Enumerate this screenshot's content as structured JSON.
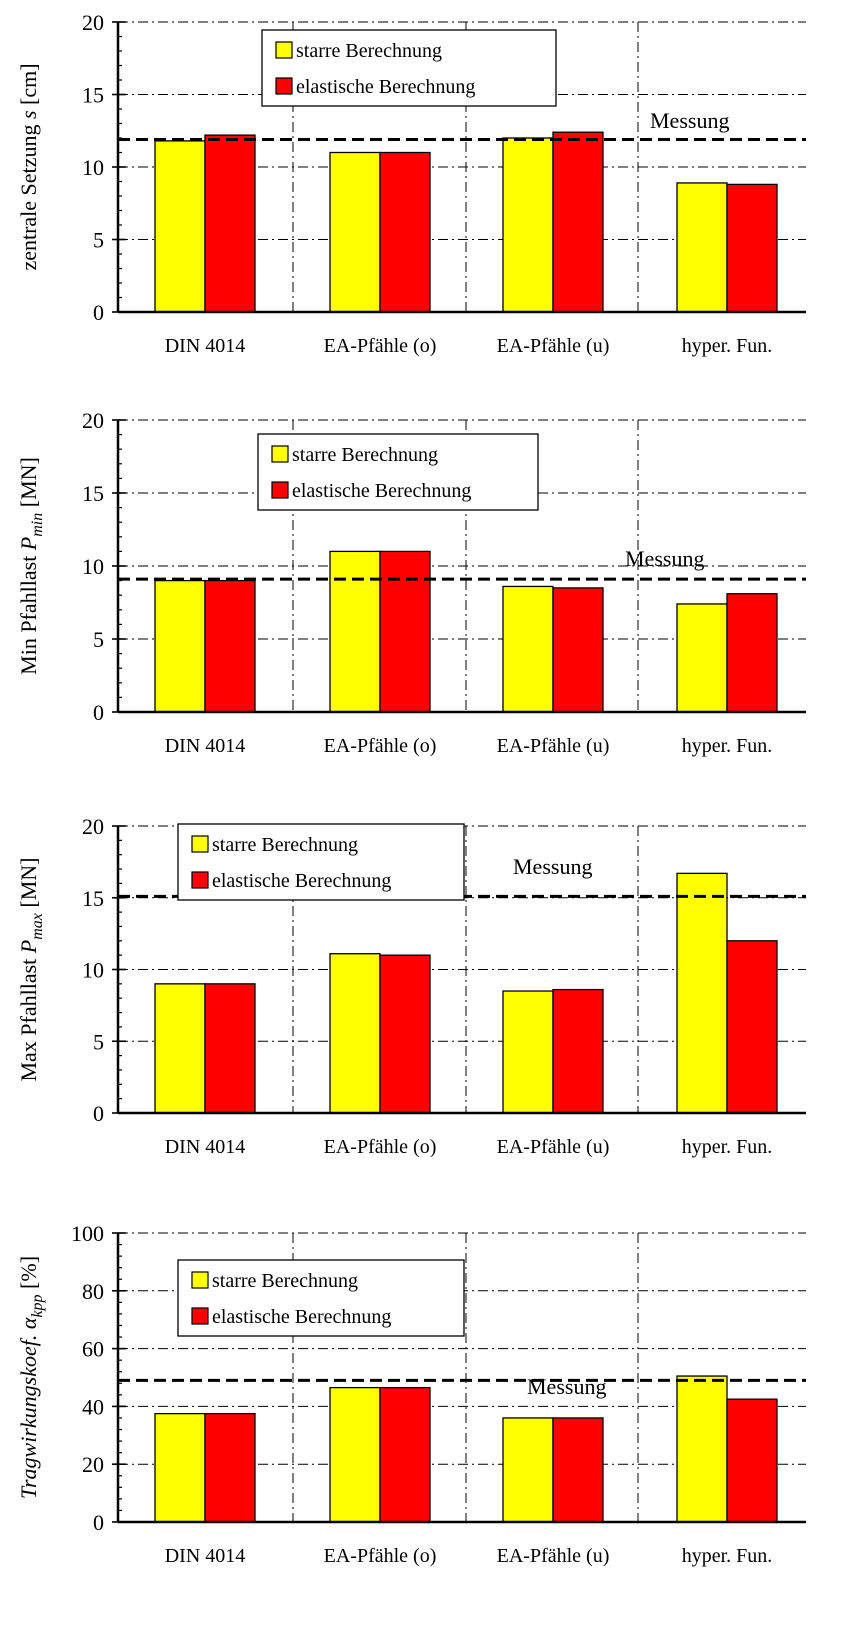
{
  "chart_data": [
    {
      "type": "bar",
      "ylabel": "zentrale Setzung s [cm]",
      "ylabel_parts": [
        {
          "text": "zentrale Setzung ",
          "italic": false
        },
        {
          "text": "s",
          "italic": true
        },
        {
          "text": " [cm]",
          "italic": false
        }
      ],
      "ylim": [
        0,
        20
      ],
      "yticks": [
        0,
        5,
        10,
        15,
        20
      ],
      "categories": [
        "DIN 4014",
        "EA-Pfähle (o)",
        "EA-Pfähle (u)",
        "hyper. Fun."
      ],
      "series": [
        {
          "name": "starre Berechnung",
          "color": "#ffff00",
          "values": [
            11.8,
            11.0,
            12.0,
            8.9
          ]
        },
        {
          "name": "elastische Berechnung",
          "color": "#ff0000",
          "values": [
            12.2,
            11.0,
            12.4,
            8.8
          ]
        }
      ],
      "reference": {
        "label": "Messung",
        "value": 11.9
      },
      "legend": "top-center",
      "grid": true
    },
    {
      "type": "bar",
      "ylabel": "Min Pfahllast P min [MN]",
      "ylabel_parts": [
        {
          "text": "Min Pfahllast ",
          "italic": false
        },
        {
          "text": "P",
          "italic": true
        },
        {
          "text": "min",
          "italic": true,
          "sub": true
        },
        {
          "text": " [MN]",
          "italic": false
        }
      ],
      "ylim": [
        0,
        20
      ],
      "yticks": [
        0,
        5,
        10,
        15,
        20
      ],
      "categories": [
        "DIN 4014",
        "EA-Pfähle (o)",
        "EA-Pfähle (u)",
        "hyper. Fun."
      ],
      "series": [
        {
          "name": "starre Berechnung",
          "color": "#ffff00",
          "values": [
            9.0,
            11.0,
            8.6,
            7.4
          ]
        },
        {
          "name": "elastische Berechnung",
          "color": "#ff0000",
          "values": [
            9.0,
            11.0,
            8.5,
            8.1
          ]
        }
      ],
      "reference": {
        "label": "Messung",
        "value": 9.1
      },
      "legend": "top-center",
      "grid": true
    },
    {
      "type": "bar",
      "ylabel": "Max Pfahllast P max [MN]",
      "ylabel_parts": [
        {
          "text": "Max Pfahllast ",
          "italic": false
        },
        {
          "text": "P",
          "italic": true
        },
        {
          "text": "max",
          "italic": true,
          "sub": true
        },
        {
          "text": " [MN]",
          "italic": false
        }
      ],
      "ylim": [
        0,
        20
      ],
      "yticks": [
        0,
        5,
        10,
        15,
        20
      ],
      "categories": [
        "DIN 4014",
        "EA-Pfähle (o)",
        "EA-Pfähle (u)",
        "hyper. Fun."
      ],
      "series": [
        {
          "name": "starre Berechnung",
          "color": "#ffff00",
          "values": [
            9.0,
            11.1,
            8.5,
            16.7
          ]
        },
        {
          "name": "elastische Berechnung",
          "color": "#ff0000",
          "values": [
            9.0,
            11.0,
            8.6,
            12.0
          ]
        }
      ],
      "reference": {
        "label": "Messung",
        "value": 15.1
      },
      "legend": "top-left",
      "grid": true
    },
    {
      "type": "bar",
      "ylabel": "Tragwirkungskoef. α kpp [%]",
      "ylabel_parts": [
        {
          "text": "Tragwirkungskoef. ",
          "italic": true
        },
        {
          "text": "α",
          "italic": true
        },
        {
          "text": "kpp",
          "italic": true,
          "sub": true
        },
        {
          "text": " [%]",
          "italic": false
        }
      ],
      "ylim": [
        0,
        100
      ],
      "yticks": [
        0,
        20,
        40,
        60,
        80,
        100
      ],
      "categories": [
        "DIN 4014",
        "EA-Pfähle (o)",
        "EA-Pfähle (u)",
        "hyper. Fun."
      ],
      "series": [
        {
          "name": "starre Berechnung",
          "color": "#ffff00",
          "values": [
            37.5,
            46.5,
            36.0,
            50.5
          ]
        },
        {
          "name": "elastische Berechnung",
          "color": "#ff0000",
          "values": [
            37.5,
            46.5,
            36.0,
            42.5
          ]
        }
      ],
      "reference": {
        "label": "Messung",
        "value": 49.0
      },
      "legend": "top-left",
      "grid": true
    }
  ]
}
